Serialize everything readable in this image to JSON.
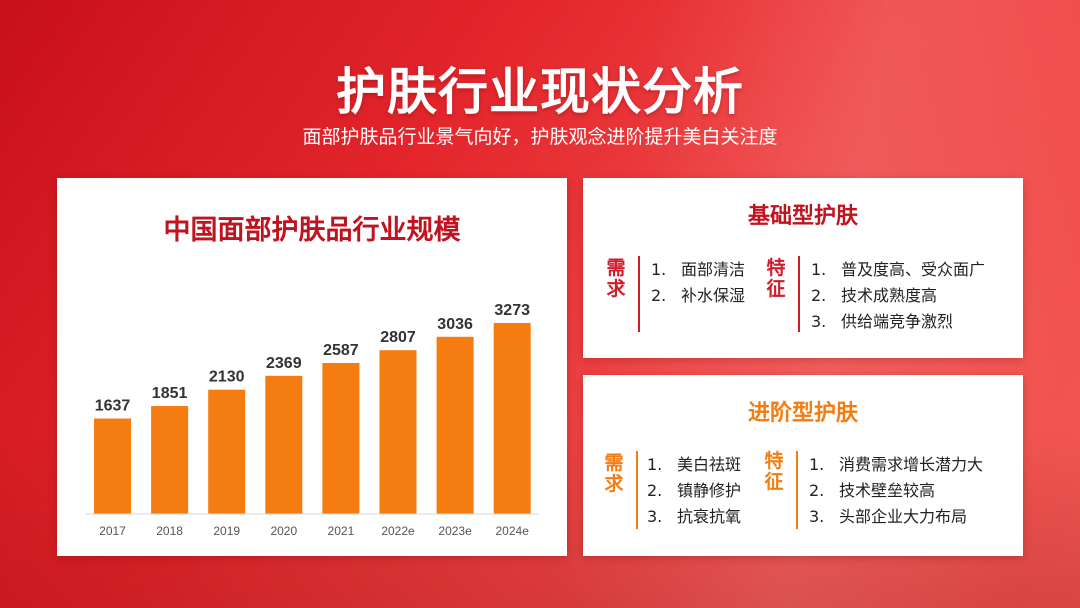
{
  "header": {
    "title": "护肤行业现状分析",
    "subtitle": "面部护肤品行业景气向好，护肤观念进阶提升美白关注度"
  },
  "colors": {
    "bar": "#f47c10",
    "accent_red": "#c1121f",
    "accent_orange": "#f47c10"
  },
  "chart_data": {
    "type": "bar",
    "title": "中国面部护肤品行业规模",
    "categories": [
      "2017",
      "2018",
      "2019",
      "2020",
      "2021",
      "2022e",
      "2023e",
      "2024e"
    ],
    "values": [
      1637,
      1851,
      2130,
      2369,
      2587,
      2807,
      3036,
      3273
    ],
    "value_labels": [
      "1637",
      "1851",
      "2130",
      "2369",
      "2587",
      "2807",
      "3036",
      "3273"
    ],
    "xlabel": "",
    "ylabel": "",
    "ylim": [
      0,
      3273
    ],
    "grid": false,
    "legend": "none"
  },
  "basic": {
    "title": "基础型护肤",
    "demand_label": "需求",
    "demand_items": [
      {
        "n": "1.",
        "t": "面部清洁"
      },
      {
        "n": "2.",
        "t": "补水保湿"
      }
    ],
    "feature_label": "特征",
    "feature_items": [
      {
        "n": "1.",
        "t": "普及度高、受众面广"
      },
      {
        "n": "2.",
        "t": "技术成熟度高"
      },
      {
        "n": "3.",
        "t": "供给端竞争激烈"
      }
    ]
  },
  "advanced": {
    "title": "进阶型护肤",
    "demand_label": "需求",
    "demand_items": [
      {
        "n": "1.",
        "t": "美白祛斑"
      },
      {
        "n": "2.",
        "t": "镇静修护"
      },
      {
        "n": "3.",
        "t": "抗衰抗氧"
      }
    ],
    "feature_label": "特征",
    "feature_items": [
      {
        "n": "1.",
        "t": "消费需求增长潜力大"
      },
      {
        "n": "2.",
        "t": "技术壁垒较高"
      },
      {
        "n": "3.",
        "t": "头部企业大力布局"
      }
    ]
  }
}
